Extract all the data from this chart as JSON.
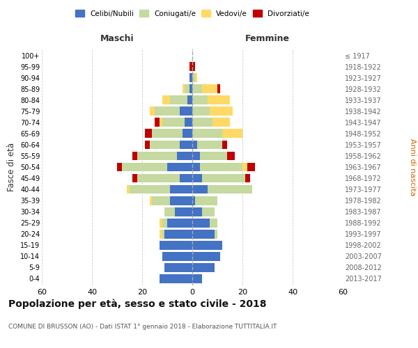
{
  "age_groups": [
    "0-4",
    "5-9",
    "10-14",
    "15-19",
    "20-24",
    "25-29",
    "30-34",
    "35-39",
    "40-44",
    "45-49",
    "50-54",
    "55-59",
    "60-64",
    "65-69",
    "70-74",
    "75-79",
    "80-84",
    "85-89",
    "90-94",
    "95-99",
    "100+"
  ],
  "birth_years": [
    "2013-2017",
    "2008-2012",
    "2003-2007",
    "1998-2002",
    "1993-1997",
    "1988-1992",
    "1983-1987",
    "1978-1982",
    "1973-1977",
    "1968-1972",
    "1963-1967",
    "1958-1962",
    "1953-1957",
    "1948-1952",
    "1943-1947",
    "1938-1942",
    "1933-1937",
    "1928-1932",
    "1923-1927",
    "1918-1922",
    "≤ 1917"
  ],
  "colors": {
    "celibe": "#4472C4",
    "coniugato": "#C5D9A0",
    "vedovo": "#FFD966",
    "divorziato": "#C00000"
  },
  "maschi": {
    "celibe": [
      13,
      11,
      12,
      13,
      11,
      10,
      7,
      9,
      9,
      5,
      10,
      6,
      5,
      4,
      3,
      5,
      2,
      1,
      1,
      0,
      0
    ],
    "coniugato": [
      0,
      0,
      0,
      0,
      1,
      2,
      4,
      7,
      16,
      17,
      18,
      16,
      12,
      12,
      9,
      10,
      7,
      2,
      0,
      0,
      0
    ],
    "vedovo": [
      0,
      0,
      0,
      0,
      1,
      1,
      0,
      1,
      1,
      0,
      0,
      0,
      0,
      0,
      1,
      2,
      3,
      1,
      0,
      0,
      0
    ],
    "divorziato": [
      0,
      0,
      0,
      0,
      0,
      0,
      0,
      0,
      0,
      2,
      2,
      2,
      2,
      3,
      2,
      0,
      0,
      0,
      0,
      1,
      0
    ]
  },
  "femmine": {
    "nubile": [
      4,
      9,
      11,
      12,
      9,
      7,
      4,
      1,
      6,
      4,
      3,
      3,
      2,
      0,
      0,
      0,
      0,
      0,
      0,
      0,
      0
    ],
    "coniugata": [
      0,
      0,
      0,
      0,
      1,
      3,
      5,
      9,
      18,
      17,
      17,
      11,
      10,
      12,
      8,
      7,
      6,
      4,
      1,
      0,
      0
    ],
    "vedova": [
      0,
      0,
      0,
      0,
      0,
      0,
      0,
      0,
      0,
      0,
      2,
      0,
      0,
      8,
      7,
      9,
      9,
      6,
      1,
      0,
      0
    ],
    "divorziata": [
      0,
      0,
      0,
      0,
      0,
      0,
      0,
      0,
      0,
      2,
      3,
      3,
      2,
      0,
      0,
      0,
      0,
      1,
      0,
      1,
      0
    ]
  },
  "xlim": 60,
  "title": "Popolazione per età, sesso e stato civile - 2018",
  "subtitle": "COMUNE DI BRUSSON (AO) - Dati ISTAT 1° gennaio 2018 - Elaborazione TUTTITALIA.IT",
  "ylabel_left": "Fasce di età",
  "ylabel_right": "Anni di nascita",
  "xlabel_left": "Maschi",
  "xlabel_right": "Femmine",
  "legend_labels": [
    "Celibi/Nubili",
    "Coniugati/e",
    "Vedovi/e",
    "Divorziati/e"
  ],
  "background_color": "#FFFFFF",
  "grid_color": "#CCCCCC",
  "xticks": [
    -60,
    -40,
    -20,
    0,
    20,
    40,
    60
  ],
  "xtick_labels": [
    "60",
    "40",
    "20",
    "0",
    "20",
    "40",
    "60"
  ]
}
